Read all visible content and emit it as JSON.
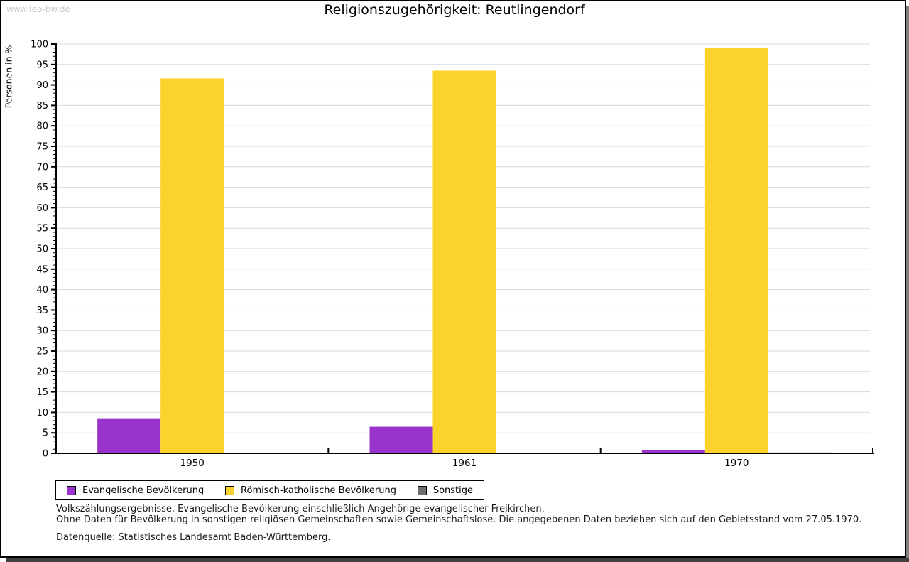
{
  "watermark": "www.leo-bw.de",
  "title": "Religionszugehörigkeit: Reutlingendorf",
  "chart_data": {
    "type": "bar",
    "title": "Religionszugehörigkeit: Reutlingendorf",
    "categories": [
      "1950",
      "1961",
      "1970"
    ],
    "series": [
      {
        "name": "Evangelische Bevölkerung",
        "color": "#9933CC",
        "values": [
          8.4,
          6.5,
          0.8
        ]
      },
      {
        "name": "Römisch-katholische Bevölkerung",
        "color": "#FCD32D",
        "values": [
          91.6,
          93.5,
          99.0
        ]
      },
      {
        "name": "Sonstige",
        "color": "#6F6F6F",
        "values": [
          0.0,
          0.0,
          0.2
        ]
      }
    ],
    "ylabel": "Personen in %",
    "xlabel": "",
    "ylim": [
      0,
      100
    ],
    "ytick_step": 5,
    "minor_tick_step": 1,
    "grid": true,
    "gridline_color": "#d9d9d9",
    "legend_position": "bottom"
  },
  "footnotes": [
    "Volkszählungsergebnisse. Evangelische Bevölkerung einschließlich Angehörige evangelischer Freikirchen.",
    "Ohne Daten für Bevölkerung in sonstigen religiösen Gemeinschaften sowie Gemeinschaftslose. Die angegebenen Daten beziehen sich auf den Gebietsstand vom 27.05.1970."
  ],
  "source": "Datenquelle: Statistisches Landesamt Baden-Württemberg."
}
